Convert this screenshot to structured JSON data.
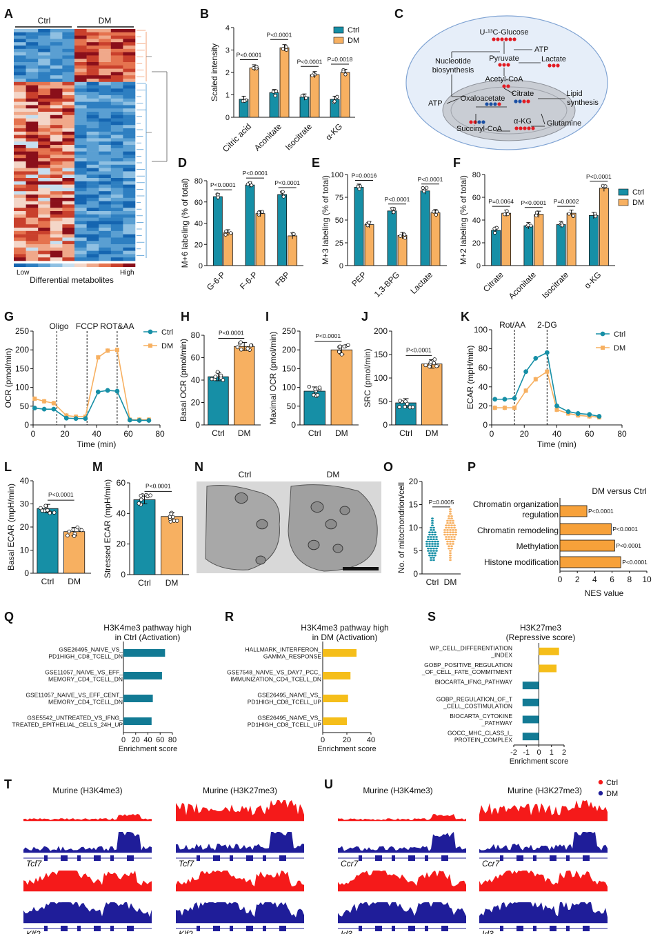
{
  "colors": {
    "ctrl": "#168fa6",
    "dm": "#f7b061",
    "red": "#f51a1a",
    "blue": "#1f1d99",
    "gsea_teal": "#127a94",
    "gsea_gold": "#f5be1a"
  },
  "panel_labels": [
    "A",
    "B",
    "C",
    "D",
    "E",
    "F",
    "G",
    "H",
    "I",
    "J",
    "K",
    "L",
    "M",
    "N",
    "O",
    "P",
    "Q",
    "R",
    "S",
    "T",
    "U"
  ],
  "legend": {
    "ctrl": "Ctrl",
    "dm": "DM"
  },
  "heatmap": {
    "ctrl_label": "Ctrl",
    "dm_label": "DM",
    "low": "Low",
    "high": "High",
    "xlabel": "Differential metabolites"
  },
  "pathway": {
    "labels": {
      "glucose": "U-¹³C-Glucose",
      "atp1": "ATP",
      "pyruvate": "Pyruvate",
      "lactate": "Lactate",
      "nucleotide1": "Nucleotide",
      "nucleotide2": "biosynthesis",
      "acetyl": "Acetyl-CoA",
      "citrate": "Citrate",
      "lipid1": "Lipid",
      "lipid2": "synthesis",
      "atp2": "ATP",
      "oaa": "Oxaloacetate",
      "akg": "α-KG",
      "glutamine": "Glutamine",
      "succ": "Succinyl-CoA"
    }
  },
  "chart_data": [
    {
      "id": "B",
      "type": "bar",
      "ylabel": "Scaled intensity",
      "ylim": [
        0,
        4
      ],
      "yticks": [
        0,
        1,
        2,
        3,
        4
      ],
      "categories": [
        "Citric acid",
        "Aconitate",
        "Isocitrate",
        "α-KG"
      ],
      "series": [
        {
          "name": "Ctrl",
          "values": [
            0.8,
            1.1,
            0.9,
            0.8
          ]
        },
        {
          "name": "DM",
          "values": [
            2.2,
            3.1,
            1.9,
            2.0
          ]
        }
      ],
      "pvalues": [
        "P<0.0001",
        "P<0.0001",
        "P<0.0001",
        "P=0.0018"
      ]
    },
    {
      "id": "D",
      "type": "bar",
      "ylabel": "M+6 labeling (% of total)",
      "ylim": [
        0,
        80
      ],
      "yticks": [
        0,
        20,
        40,
        60,
        80
      ],
      "categories": [
        "G-6-P",
        "F-6-P",
        "FBP"
      ],
      "series": [
        {
          "name": "Ctrl",
          "values": [
            65,
            76,
            67
          ]
        },
        {
          "name": "DM",
          "values": [
            31,
            49,
            28
          ]
        }
      ],
      "pvalues": [
        "P<0.0001",
        "P<0.0001",
        "P<0.0001"
      ]
    },
    {
      "id": "E",
      "type": "bar",
      "ylabel": "M+3 labeling (% of total)",
      "ylim": [
        0,
        100
      ],
      "yticks": [
        0,
        25,
        50,
        75,
        100
      ],
      "categories": [
        "PEP",
        "1,3-BPG",
        "Lactate"
      ],
      "series": [
        {
          "name": "Ctrl",
          "values": [
            86,
            60,
            82
          ]
        },
        {
          "name": "DM",
          "values": [
            45,
            33,
            58
          ]
        }
      ],
      "pvalues": [
        "P=0.0016",
        "P<0.0001",
        "P<0.0001"
      ]
    },
    {
      "id": "F",
      "type": "bar",
      "ylabel": "M+2 labeling (% of total)",
      "ylim": [
        0,
        80
      ],
      "yticks": [
        0,
        20,
        40,
        60,
        80
      ],
      "categories": [
        "Citrate",
        "Aconitate",
        "Isocitrate",
        "α-KG"
      ],
      "series": [
        {
          "name": "Ctrl",
          "values": [
            31,
            35,
            36,
            44
          ]
        },
        {
          "name": "DM",
          "values": [
            46,
            45,
            46,
            68
          ]
        }
      ],
      "pvalues": [
        "P=0.0064",
        "P<0.0001",
        "P=0.0002",
        "P<0.0001"
      ]
    },
    {
      "id": "G",
      "type": "line",
      "ylabel": "OCR (pmol/min)",
      "xlabel": "Time (min)",
      "xlim": [
        0,
        80
      ],
      "ylim": [
        0,
        250
      ],
      "xticks": [
        0,
        20,
        40,
        60,
        80
      ],
      "yticks": [
        0,
        50,
        100,
        150,
        200,
        250
      ],
      "vlines": [
        {
          "x": 15,
          "label": "Oligo"
        },
        {
          "x": 34,
          "label": "FCCP"
        },
        {
          "x": 53,
          "label": "ROT&AA"
        }
      ],
      "x": [
        1,
        7,
        13,
        21,
        27,
        33,
        41,
        47,
        53,
        61,
        67,
        73
      ],
      "series": [
        {
          "name": "Ctrl",
          "values": [
            45,
            42,
            42,
            18,
            17,
            17,
            88,
            92,
            90,
            13,
            12,
            12
          ]
        },
        {
          "name": "DM",
          "values": [
            70,
            63,
            58,
            25,
            22,
            22,
            180,
            198,
            200,
            14,
            14,
            14
          ]
        }
      ]
    },
    {
      "id": "H",
      "type": "bar",
      "ylabel": "Basal OCR (pmol/min)",
      "ylim": [
        0,
        80
      ],
      "yticks": [
        0,
        20,
        40,
        60,
        80
      ],
      "categories": [
        "Ctrl",
        "DM"
      ],
      "values": [
        43,
        70
      ],
      "pvalue": "P<0.0001"
    },
    {
      "id": "I",
      "type": "bar",
      "ylabel": "Maximal OCR (pmol/min)",
      "ylim": [
        0,
        250
      ],
      "yticks": [
        0,
        50,
        100,
        150,
        200,
        250
      ],
      "categories": [
        "Ctrl",
        "DM"
      ],
      "values": [
        90,
        200
      ],
      "pvalue": "P<0.0001"
    },
    {
      "id": "J",
      "type": "bar",
      "ylabel": "SRC (pmol/min)",
      "ylim": [
        0,
        200
      ],
      "yticks": [
        0,
        50,
        100,
        150,
        200
      ],
      "categories": [
        "Ctrl",
        "DM"
      ],
      "values": [
        47,
        130
      ],
      "pvalue": "P<0.0001"
    },
    {
      "id": "K",
      "type": "line",
      "ylabel": "ECAR (mpH/min)",
      "xlabel": "Time (min)",
      "xlim": [
        0,
        80
      ],
      "ylim": [
        0,
        100
      ],
      "xticks": [
        0,
        20,
        40,
        60,
        80
      ],
      "yticks": [
        0,
        20,
        40,
        60,
        80,
        100
      ],
      "vlines": [
        {
          "x": 14,
          "label": "Rot/AA"
        },
        {
          "x": 34,
          "label": "2-DG"
        }
      ],
      "x": [
        2,
        8,
        14,
        21,
        27,
        34,
        40,
        47,
        53,
        60,
        66
      ],
      "series": [
        {
          "name": "Ctrl",
          "values": [
            27,
            27,
            28,
            56,
            70,
            76,
            20,
            14,
            12,
            11,
            9
          ]
        },
        {
          "name": "DM",
          "values": [
            18,
            18,
            18,
            36,
            48,
            56,
            16,
            12,
            10,
            9,
            8
          ]
        }
      ]
    },
    {
      "id": "L",
      "type": "bar",
      "ylabel": "Basal ECAR (mpH/min)",
      "ylim": [
        0,
        40
      ],
      "yticks": [
        0,
        10,
        20,
        30,
        40
      ],
      "categories": [
        "Ctrl",
        "DM"
      ],
      "values": [
        28,
        18
      ],
      "pvalue": "P<0.0001"
    },
    {
      "id": "M",
      "type": "bar",
      "ylabel": "Stressed ECAR (mpH/min)",
      "ylim": [
        0,
        60
      ],
      "yticks": [
        0,
        20,
        40,
        60
      ],
      "categories": [
        "Ctrl",
        "DM"
      ],
      "values": [
        49,
        38
      ],
      "pvalue": "P<0.0001"
    },
    {
      "id": "N",
      "type": "image",
      "labels": [
        "Ctrl",
        "DM"
      ]
    },
    {
      "id": "O",
      "type": "scatter",
      "ylabel": "No. of mitochondrion/cell",
      "ylim": [
        0,
        20
      ],
      "yticks": [
        0,
        5,
        10,
        15,
        20
      ],
      "categories": [
        "Ctrl",
        "DM"
      ],
      "pvalue": "P=0.0005"
    },
    {
      "id": "P",
      "type": "bar",
      "title": "DM versus Ctrl",
      "xlabel": "NES value",
      "xlim": [
        0,
        10
      ],
      "xticks": [
        0,
        2,
        4,
        6,
        8,
        10
      ],
      "categories": [
        "Chromatin organization regulation",
        "Chromatin remodeling",
        "Methylation",
        "Histone modification"
      ],
      "values": [
        3.1,
        5.9,
        6.3,
        7.0
      ],
      "pvalues": [
        "P<0.0001",
        "P<0.0001",
        "P<0.0001",
        "P<0.0001"
      ]
    },
    {
      "id": "Q",
      "type": "bar",
      "title": "H3K4me3 pathway high in Ctrl (Activation)",
      "xlabel": "Enrichment score",
      "xlim": [
        0,
        80
      ],
      "xticks": [
        0,
        20,
        40,
        60,
        80
      ],
      "categories": [
        "GSE26495_NAIVE_VS_ PD1HIGH_CD8_TCELL_DN",
        "GSE11057_NAIVE_VS_EFF_ MEMORY_CD4_TCELL_DN",
        "GSE11057_NAIVE_VS_EFF_CENT_ MEMORY_CD4_TCELL_DN",
        "GSE5542_UNTREATED_VS_IFNG_ TREATED_EPITHELIAL_CELLS_24H_UP"
      ],
      "values": [
        68,
        63,
        48,
        46
      ]
    },
    {
      "id": "R",
      "type": "bar",
      "title": "H3K4me3 pathway high in DM (Activation)",
      "xlabel": "Enrichment score",
      "xlim": [
        0,
        40
      ],
      "xticks": [
        0,
        20,
        40
      ],
      "categories": [
        "HALLMARK_INTERFERON_ GAMMA_RESPONSE",
        "GSE7548_NAIVE_VS_DAY7_PCC_ IMMUNIZATION_CD4_TCELL_DN",
        "GSE26495_NAIVE_VS_ PD1HIGH_CD8_TCELL_UP",
        "GSE26495_NAIVE_VS_ PD1HIGH_CD8_TCELL_UP"
      ],
      "values": [
        28,
        23,
        21,
        20
      ]
    },
    {
      "id": "S",
      "type": "bar",
      "title": "H3K27me3 (Repressive score)",
      "xlabel": "Enrichment score",
      "xlim": [
        -2,
        2
      ],
      "xticks": [
        -2,
        -1,
        0,
        1,
        2
      ],
      "categories": [
        "WP_CELL_DIFFERENTIATION _INDEX",
        "GOBP_POSITIVE_REGULATION _OF_CELL_FATE_COMMITMENT",
        "BIOCARTA_IFNG_PATHWAY",
        "GOBP_REGULATION_OF_T _CELL_COSTIMULATION",
        "BIOCARTA_CYTOKINE _PATHWAY",
        "GOCC_MHC_CLASS_I_ PROTEIN_COMPLEX"
      ],
      "values": [
        1.6,
        1.4,
        -1.3,
        -1.3,
        -1.3,
        -1.3
      ]
    },
    {
      "id": "T",
      "type": "area",
      "titles": [
        "Murine (H3K4me3)",
        "Murine (H3K27me3)"
      ],
      "genes": [
        "Tcf7",
        "Tcf7",
        "Klf2",
        "Klf2"
      ]
    },
    {
      "id": "U",
      "type": "area",
      "titles": [
        "Murine (H3K4me3)",
        "Murine (H3K27me3)"
      ],
      "genes": [
        "Ccr7",
        "Ccr7",
        "Id3",
        "Id3"
      ],
      "legend": [
        "Ctrl",
        "DM"
      ]
    }
  ]
}
